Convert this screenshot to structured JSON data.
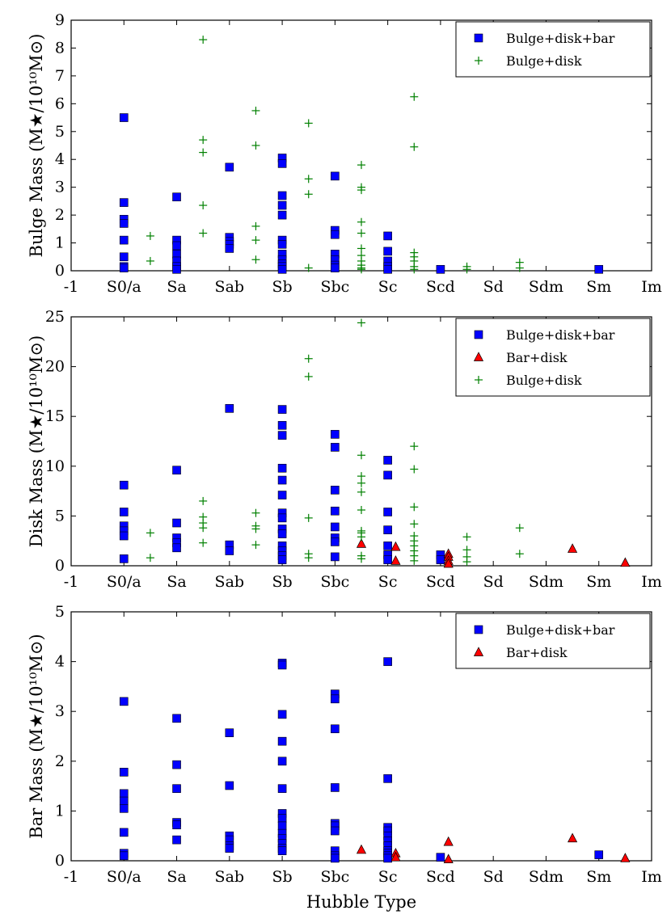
{
  "chart_data": [
    {
      "type": "scatter",
      "id": "bulge",
      "title": "",
      "ylabel": "Bulge Mass (M★/10¹⁰M⊙)",
      "xlabel": "",
      "xlim": [
        -1,
        10
      ],
      "ylim": [
        0,
        9
      ],
      "yticks": [
        0,
        1,
        2,
        3,
        4,
        5,
        6,
        7,
        8,
        9
      ],
      "xtick_labels": [
        "-1",
        "S0/a",
        "Sa",
        "Sab",
        "Sb",
        "Sbc",
        "Sc",
        "Scd",
        "Sd",
        "Sdm",
        "Sm",
        "Im"
      ],
      "legend_position": "top-right",
      "series": [
        {
          "name": "Bulge+disk+bar",
          "marker": "square",
          "color": "#0000ff",
          "x": [
            0,
            0,
            0,
            0,
            0,
            0,
            0,
            0,
            1,
            1,
            1,
            1,
            1,
            1,
            1,
            2,
            2,
            2,
            2,
            2,
            3,
            3,
            3,
            3,
            3,
            3,
            3,
            3,
            3,
            3,
            3,
            3,
            4,
            4,
            4,
            4,
            4,
            4,
            4,
            5,
            5,
            5,
            5,
            5,
            6,
            9
          ],
          "y": [
            5.5,
            2.45,
            1.85,
            1.7,
            1.1,
            0.5,
            0.15,
            0.1,
            2.65,
            1.1,
            0.9,
            0.6,
            0.35,
            0.15,
            0.05,
            3.72,
            1.2,
            1.05,
            0.95,
            0.8,
            4.05,
            3.85,
            2.7,
            2.35,
            2.0,
            1.1,
            0.95,
            0.6,
            0.4,
            0.25,
            0.15,
            0.05,
            3.4,
            1.45,
            1.3,
            0.6,
            0.4,
            0.2,
            0.1,
            1.25,
            0.7,
            0.35,
            0.15,
            0.05,
            0.05,
            0.05
          ]
        },
        {
          "name": "Bulge+disk",
          "marker": "plus",
          "color": "#008000",
          "x": [
            0.5,
            0.5,
            1.5,
            1.5,
            1.5,
            1.5,
            1.5,
            2.5,
            2.5,
            2.5,
            2.5,
            2.5,
            3.5,
            3.5,
            3.5,
            3.5,
            4.5,
            4.5,
            4.5,
            4.5,
            4.5,
            4.5,
            4.5,
            4.5,
            4.5,
            4.5,
            4.5,
            5.5,
            5.5,
            5.5,
            5.5,
            5.5,
            5.5,
            5.5,
            6.5,
            6.5,
            7.5,
            7.5
          ],
          "y": [
            1.25,
            0.35,
            8.3,
            4.7,
            4.25,
            2.35,
            1.35,
            5.75,
            4.5,
            1.6,
            1.1,
            0.4,
            5.3,
            3.3,
            2.75,
            0.1,
            3.8,
            3.0,
            2.9,
            1.75,
            1.35,
            0.8,
            0.55,
            0.35,
            0.2,
            0.1,
            0.05,
            6.25,
            4.45,
            0.65,
            0.5,
            0.35,
            0.15,
            0.05,
            0.15,
            0.05,
            0.3,
            0.1
          ]
        }
      ]
    },
    {
      "type": "scatter",
      "id": "disk",
      "title": "",
      "ylabel": "Disk Mass (M★/10¹⁰M⊙)",
      "xlabel": "",
      "xlim": [
        -1,
        10
      ],
      "ylim": [
        0,
        25
      ],
      "yticks": [
        0,
        5,
        10,
        15,
        20,
        25
      ],
      "xtick_labels": [
        "-1",
        "S0/a",
        "Sa",
        "Sab",
        "Sb",
        "Sbc",
        "Sc",
        "Scd",
        "Sd",
        "Sdm",
        "Sm",
        "Im"
      ],
      "legend_position": "top-right",
      "series": [
        {
          "name": "Bulge+disk+bar",
          "marker": "square",
          "color": "#0000ff",
          "x": [
            0,
            0,
            0,
            0,
            0,
            0,
            1,
            1,
            1,
            1,
            1,
            2,
            2,
            2,
            3,
            3,
            3,
            3,
            3,
            3,
            3,
            3,
            3,
            3,
            3,
            3,
            3,
            3,
            4,
            4,
            4,
            4,
            4,
            4,
            4,
            4,
            5,
            5,
            5,
            5,
            5,
            5,
            5,
            6,
            6
          ],
          "y": [
            8.1,
            5.4,
            4.0,
            3.5,
            3.0,
            0.7,
            9.6,
            4.3,
            2.8,
            2.3,
            1.8,
            15.8,
            2.1,
            1.5,
            15.7,
            14.1,
            13.1,
            9.8,
            8.6,
            7.1,
            5.3,
            4.8,
            3.7,
            3.2,
            2.0,
            1.5,
            1.0,
            0.6,
            13.2,
            11.9,
            7.6,
            5.5,
            3.9,
            2.8,
            2.4,
            0.9,
            10.6,
            9.1,
            5.4,
            3.6,
            2.0,
            1.1,
            0.6,
            1.1,
            0.6
          ]
        },
        {
          "name": "Bar+disk",
          "marker": "triangle",
          "color": "#ff0000",
          "x": [
            4.5,
            5.15,
            5.15,
            6.15,
            6.15,
            6.15,
            6.15,
            8.5,
            9.5
          ],
          "y": [
            2.2,
            1.9,
            0.5,
            1.2,
            0.9,
            0.5,
            0.2,
            1.7,
            0.3
          ]
        },
        {
          "name": "Bulge+disk",
          "marker": "plus",
          "color": "#008000",
          "x": [
            0.5,
            0.5,
            1.5,
            1.5,
            1.5,
            1.5,
            1.5,
            2.5,
            2.5,
            2.5,
            2.5,
            3.5,
            3.5,
            3.5,
            3.5,
            3.5,
            4.5,
            4.5,
            4.5,
            4.5,
            4.5,
            4.5,
            4.5,
            4.5,
            4.5,
            4.5,
            4.5,
            5.5,
            5.5,
            5.5,
            5.5,
            5.5,
            5.5,
            5.5,
            5.5,
            5.5,
            5.5,
            6.5,
            6.5,
            6.5,
            6.5,
            7.5,
            7.5
          ],
          "y": [
            3.3,
            0.8,
            6.5,
            4.9,
            4.3,
            3.8,
            2.3,
            5.3,
            4.0,
            3.7,
            2.1,
            20.8,
            19.0,
            4.8,
            1.2,
            0.8,
            24.4,
            11.1,
            9.0,
            8.3,
            7.4,
            5.6,
            3.5,
            3.3,
            2.9,
            1.0,
            0.7,
            12.0,
            9.7,
            5.9,
            4.2,
            3.0,
            2.5,
            2.0,
            1.5,
            1.0,
            0.5,
            2.9,
            1.6,
            0.9,
            0.4,
            3.8,
            1.2
          ]
        }
      ]
    },
    {
      "type": "scatter",
      "id": "bar",
      "title": "",
      "ylabel": "Bar Mass (M★/10¹⁰M⊙)",
      "xlabel": "Hubble Type",
      "xlim": [
        -1,
        10
      ],
      "ylim": [
        0,
        5
      ],
      "yticks": [
        0,
        1,
        2,
        3,
        4,
        5
      ],
      "xtick_labels": [
        "-1",
        "S0/a",
        "Sa",
        "Sab",
        "Sb",
        "Sbc",
        "Sc",
        "Scd",
        "Sd",
        "Sdm",
        "Sm",
        "Im"
      ],
      "legend_position": "top-right",
      "series": [
        {
          "name": "Bulge+disk+bar",
          "marker": "square",
          "color": "#0000ff",
          "x": [
            0,
            0,
            0,
            0,
            0,
            0,
            0,
            0,
            1,
            1,
            1,
            1,
            1,
            1,
            2,
            2,
            2,
            2,
            2,
            2,
            3,
            3,
            3,
            3,
            3,
            3,
            3,
            3,
            3,
            3,
            3,
            3,
            3,
            3,
            4,
            4,
            4,
            4,
            4,
            4,
            4,
            4,
            4,
            4,
            5,
            5,
            5,
            5,
            5,
            5,
            5,
            5,
            5,
            5,
            5,
            6,
            9
          ],
          "y": [
            3.2,
            1.78,
            1.35,
            1.2,
            1.05,
            0.57,
            0.15,
            0.1,
            2.86,
            1.93,
            1.45,
            0.77,
            0.72,
            0.42,
            2.57,
            1.51,
            0.5,
            0.42,
            0.3,
            0.25,
            3.97,
            3.93,
            2.94,
            2.4,
            2.0,
            1.45,
            0.95,
            0.85,
            0.7,
            0.55,
            0.45,
            0.35,
            0.25,
            0.2,
            3.35,
            3.25,
            2.65,
            1.47,
            0.75,
            0.7,
            0.6,
            0.2,
            0.1,
            0.05,
            4.0,
            1.65,
            0.67,
            0.6,
            0.5,
            0.4,
            0.3,
            0.2,
            0.15,
            0.1,
            0.05,
            0.07,
            0.12
          ]
        },
        {
          "name": "Bar+disk",
          "marker": "triangle",
          "color": "#ff0000",
          "x": [
            4.5,
            5.15,
            5.15,
            6.15,
            6.15,
            8.5,
            9.5
          ],
          "y": [
            0.22,
            0.15,
            0.07,
            0.38,
            0.03,
            0.45,
            0.05
          ]
        }
      ]
    }
  ]
}
